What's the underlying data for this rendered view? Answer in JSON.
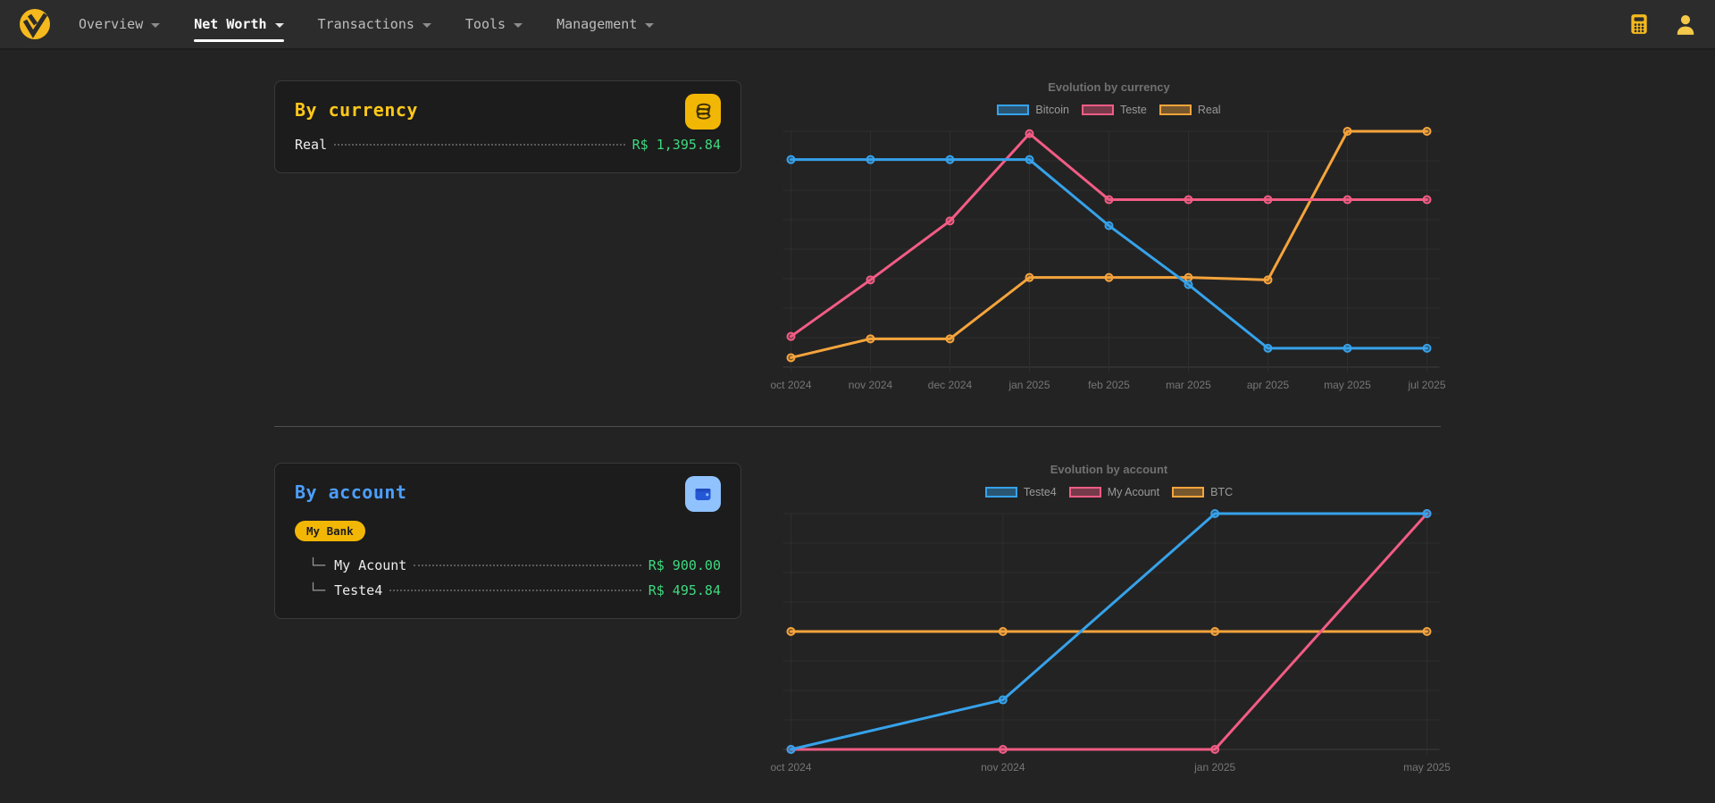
{
  "colors": {
    "brand_yellow": "#f5b91e",
    "title_yellow": "#ffc81a",
    "title_blue": "#4c9ffe",
    "money_green": "#3fd97f",
    "badge_yellow": "#f2b705",
    "wallet_chip_blue": "#90c2fd",
    "wallet_glyph_blue": "#2457d6",
    "series_blue": "#36a2eb",
    "series_pink": "#f25c85",
    "series_orange": "#f5a43c",
    "page_background": "#232323",
    "card_background": "#1c1c1c"
  },
  "navbar": {
    "items": [
      {
        "label": "Overview",
        "active": false
      },
      {
        "label": "Net Worth",
        "active": true
      },
      {
        "label": "Transactions",
        "active": false
      },
      {
        "label": "Tools",
        "active": false
      },
      {
        "label": "Management",
        "active": false
      }
    ]
  },
  "currency_card": {
    "title": "By currency",
    "icon": "coins-icon",
    "rows": [
      {
        "name": "Real",
        "value": "R$ 1,395.84"
      }
    ]
  },
  "account_card": {
    "title": "By account",
    "icon": "wallet-icon",
    "badge": "My Bank",
    "rows": [
      {
        "prefix": "└─",
        "name": "My Acount",
        "value": "R$ 900.00"
      },
      {
        "prefix": "└─",
        "name": "Teste4",
        "value": "R$ 495.84"
      }
    ]
  },
  "chart_data": [
    {
      "type": "line",
      "title": "Evolution by currency",
      "categories": [
        "oct 2024",
        "nov 2024",
        "dec 2024",
        "jan 2025",
        "feb 2025",
        "mar 2025",
        "apr 2025",
        "may 2025",
        "jul 2025"
      ],
      "series": [
        {
          "name": "Bitcoin",
          "color": "#36a2eb",
          "values": [
            88,
            88,
            88,
            88,
            60,
            35,
            8,
            8,
            8
          ]
        },
        {
          "name": "Teste",
          "color": "#f25c85",
          "values": [
            13,
            37,
            62,
            99,
            71,
            71,
            71,
            71,
            71
          ]
        },
        {
          "name": "Real",
          "color": "#f5a43c",
          "values": [
            4,
            12,
            12,
            38,
            38,
            38,
            37,
            100,
            100
          ]
        }
      ],
      "ylim": [
        0,
        100
      ],
      "grid": true,
      "legend_position": "top",
      "note": "no y-axis tick labels visible; values are relative 0-100 estimates of line height"
    },
    {
      "type": "line",
      "title": "Evolution by account",
      "categories": [
        "oct 2024",
        "nov 2024",
        "jan 2025",
        "may 2025"
      ],
      "series": [
        {
          "name": "Teste4",
          "color": "#36a2eb",
          "values": [
            0,
            21,
            100,
            100
          ]
        },
        {
          "name": "My Acount",
          "color": "#f25c85",
          "values": [
            0,
            0,
            0,
            100
          ]
        },
        {
          "name": "BTC",
          "color": "#f5a43c",
          "values": [
            50,
            50,
            50,
            50
          ]
        }
      ],
      "ylim": [
        0,
        100
      ],
      "grid": true,
      "legend_position": "top",
      "note": "no y-axis tick labels visible; values are relative 0-100 estimates of line height"
    }
  ]
}
